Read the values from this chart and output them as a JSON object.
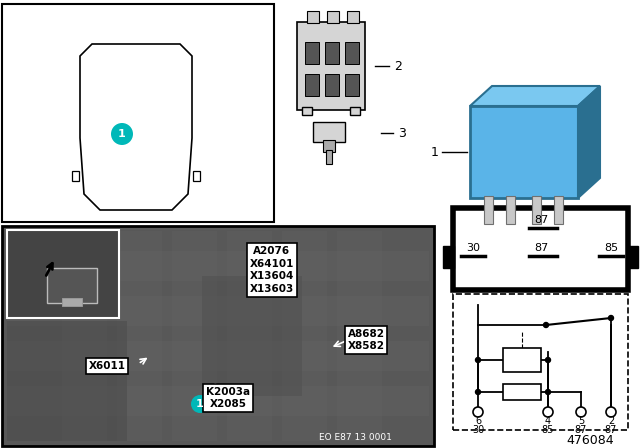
{
  "bg_color": "#ffffff",
  "fig_num": "476084",
  "eo_label": "EO E87 13 0001",
  "relay_blue": "#5ab4e8",
  "relay_blue_top": "#7ac8f0",
  "relay_blue_dark": "#2a6f90",
  "teal": "#00b8b8",
  "photo_bg": "#606060",
  "photo_dark": "#484848",
  "white": "#ffffff",
  "black": "#000000",
  "pin_diag_labels_top": [
    "87"
  ],
  "pin_diag_labels_mid": [
    "30",
    "87",
    "85"
  ],
  "schematic_pin_nums": [
    "6",
    "4",
    "5",
    "2"
  ],
  "schematic_pin_labels": [
    "30",
    "85",
    "87",
    "87"
  ],
  "photo_labels": {
    "group1": [
      "A2076",
      "X64101",
      "X13604",
      "X13603"
    ],
    "x6011": [
      "X6011"
    ],
    "k2003a": [
      "K2003a",
      "X2085"
    ],
    "a8682": [
      "A8682",
      "X8582"
    ]
  },
  "item2_label": "2",
  "item3_label": "3",
  "item1_label": "1"
}
